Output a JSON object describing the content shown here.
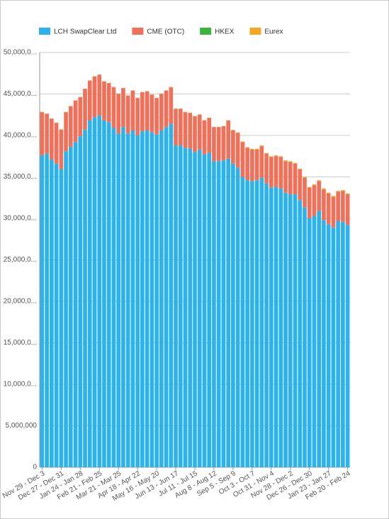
{
  "chart_data": {
    "type": "stacked-bar",
    "categories": [
      "Nov 29 - Dec 3",
      null,
      null,
      null,
      "Dec 27 - Dec 31",
      null,
      null,
      null,
      "Jan 24 - Jan 28",
      null,
      null,
      null,
      "Feb 21 - Feb 25",
      null,
      null,
      null,
      "Mar 21 - Mar 25",
      null,
      null,
      null,
      "Apr 18 - Apr 22",
      null,
      null,
      null,
      "May 16 - May 20",
      null,
      null,
      null,
      "Jun 13 - Jun 17",
      null,
      null,
      null,
      "Jul 11 - Jul 15",
      null,
      null,
      null,
      "Aug 8 - Aug 12",
      null,
      null,
      null,
      "Sep 5 - Sep 9",
      null,
      null,
      null,
      "Oct 3 - Oct 7",
      null,
      null,
      null,
      "Oct 31 - Nov 4",
      null,
      null,
      null,
      "Nov 28 - Dec 2",
      null,
      null,
      null,
      "Dec 26 - Dec 30",
      null,
      null,
      null,
      "Jan 23 - Jan 27",
      null,
      null,
      null,
      "Feb 20 - Feb 24"
    ],
    "series": [
      {
        "name": "LCH SwapClear Ltd",
        "color": "#2bb3ee",
        "values": [
          37600000,
          37800000,
          37100000,
          36600000,
          35900000,
          38100000,
          38600000,
          39200000,
          39900000,
          40700000,
          41800000,
          42200000,
          42400000,
          41800000,
          41600000,
          40900000,
          40200000,
          41000000,
          40200000,
          40600000,
          40000000,
          40500000,
          40600000,
          40400000,
          40100000,
          40600000,
          41000000,
          41400000,
          38800000,
          38800000,
          38500000,
          38400000,
          38000000,
          38300000,
          37700000,
          37900000,
          36900000,
          36900000,
          37000000,
          37200000,
          36600000,
          36100000,
          35000000,
          34600000,
          34500000,
          34600000,
          34900000,
          34200000,
          33700000,
          33800000,
          33600000,
          33100000,
          32900000,
          32900000,
          32200000,
          31300000,
          30000000,
          30300000,
          30900000,
          29800000,
          29300000,
          28900000,
          29700000,
          29600000,
          29200000
        ]
      },
      {
        "name": "CME (OTC)",
        "color": "#f0705a",
        "values": [
          5200000,
          4800000,
          4900000,
          4900000,
          4800000,
          4700000,
          4900000,
          5000000,
          4700000,
          4900000,
          4800000,
          4900000,
          4900000,
          4700000,
          4700000,
          4900000,
          4800000,
          4700000,
          4600000,
          4800000,
          4500000,
          4700000,
          4700000,
          4500000,
          4400000,
          4400000,
          4400000,
          4400000,
          4400000,
          4400000,
          4300000,
          4300000,
          4300000,
          4200000,
          4100000,
          4200000,
          4100000,
          4100000,
          4100000,
          4600000,
          4000000,
          4200000,
          4200000,
          3900000,
          3800000,
          3700000,
          3800000,
          3600000,
          3700000,
          3700000,
          3800000,
          3800000,
          3900000,
          3700000,
          3700000,
          3600000,
          3700000,
          3700000,
          3600000,
          3700000,
          3700000,
          3700000,
          3500000,
          3700000,
          3700000
        ]
      },
      {
        "name": "HKEX",
        "color": "#3cb43c",
        "values": [
          10000,
          10000,
          10000,
          10000,
          10000,
          10000,
          10000,
          10000,
          10000,
          10000,
          10000,
          10000,
          10000,
          10000,
          10000,
          10000,
          10000,
          10000,
          10000,
          10000,
          10000,
          10000,
          10000,
          10000,
          10000,
          10000,
          10000,
          10000,
          10000,
          10000,
          10000,
          10000,
          10000,
          10000,
          10000,
          10000,
          10000,
          10000,
          10000,
          10000,
          10000,
          10000,
          10000,
          10000,
          10000,
          10000,
          10000,
          10000,
          10000,
          10000,
          10000,
          10000,
          10000,
          10000,
          10000,
          10000,
          10000,
          10000,
          10000,
          10000,
          10000,
          10000,
          10000,
          10000,
          10000
        ]
      },
      {
        "name": "Eurex",
        "color": "#f5a623",
        "values": [
          30000,
          30000,
          30000,
          30000,
          30000,
          30000,
          30000,
          30000,
          30000,
          30000,
          30000,
          30000,
          30000,
          30000,
          30000,
          30000,
          30000,
          30000,
          30000,
          30000,
          30000,
          30000,
          30000,
          30000,
          30000,
          30000,
          30000,
          30000,
          30000,
          30000,
          30000,
          30000,
          30000,
          30000,
          30000,
          30000,
          30000,
          30000,
          30000,
          30000,
          60000,
          60000,
          60000,
          80000,
          80000,
          80000,
          80000,
          80000,
          80000,
          80000,
          80000,
          80000,
          80000,
          80000,
          80000,
          80000,
          80000,
          80000,
          80000,
          100000,
          100000,
          100000,
          100000,
          100000,
          100000
        ]
      }
    ],
    "ylim": [
      0,
      50000000
    ],
    "yticks": [
      0,
      {
        "value": 5000000,
        "label": "5,000,000"
      },
      {
        "value": 10000000,
        "label": "10,000,0..."
      },
      {
        "value": 15000000,
        "label": "15,000,0..."
      },
      {
        "value": 20000000,
        "label": "20,000,0..."
      },
      {
        "value": 25000000,
        "label": "25,000,0..."
      },
      {
        "value": 30000000,
        "label": "30,000,0..."
      },
      {
        "value": 35000000,
        "label": "35,000,0..."
      },
      {
        "value": 40000000,
        "label": "40,000,0..."
      },
      {
        "value": 45000000,
        "label": "45,000,0..."
      },
      {
        "value": 50000000,
        "label": "50,000,0..."
      }
    ],
    "grid": true,
    "legend": "top"
  }
}
